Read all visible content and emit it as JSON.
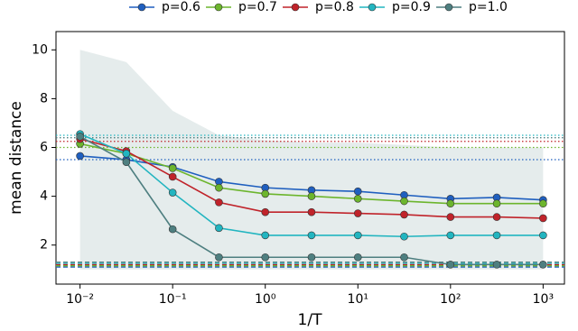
{
  "chart_data": {
    "type": "line",
    "xlabel": "1/T",
    "ylabel": "mean distance",
    "xscale": "log",
    "xlim": [
      0.0055,
      1700
    ],
    "ylim": [
      0.4,
      10.75
    ],
    "xticks": [
      {
        "value": 0.01,
        "label": "10⁻²"
      },
      {
        "value": 0.1,
        "label": "10⁻¹"
      },
      {
        "value": 1,
        "label": "10⁰"
      },
      {
        "value": 10,
        "label": "10¹"
      },
      {
        "value": 100,
        "label": "10²"
      },
      {
        "value": 1000,
        "label": "10³"
      }
    ],
    "yticks": [
      2,
      4,
      6,
      8,
      10
    ],
    "legend": "top",
    "x": [
      0.01,
      0.0316,
      0.1,
      0.316,
      1,
      3.16,
      10,
      31.6,
      100,
      316,
      1000
    ],
    "series": [
      {
        "name": "p=0.6",
        "color": "#1f5fbf",
        "values": [
          5.65,
          5.5,
          5.2,
          4.6,
          4.35,
          4.25,
          4.2,
          4.05,
          3.9,
          3.95,
          3.85
        ],
        "dotted_ref": 5.5,
        "dashed_ref": 1.1
      },
      {
        "name": "p=0.7",
        "color": "#6cb52d",
        "values": [
          6.15,
          5.75,
          5.15,
          4.35,
          4.1,
          4.0,
          3.9,
          3.8,
          3.7,
          3.7,
          3.7
        ],
        "dotted_ref": 6.0,
        "dashed_ref": 1.15
      },
      {
        "name": "p=0.8",
        "color": "#c0232a",
        "values": [
          6.35,
          5.85,
          4.8,
          3.75,
          3.35,
          3.35,
          3.3,
          3.25,
          3.15,
          3.15,
          3.1
        ],
        "dotted_ref": 6.25,
        "dashed_ref": 1.2
      },
      {
        "name": "p=0.9",
        "color": "#22b5c0",
        "values": [
          6.55,
          5.75,
          4.15,
          2.7,
          2.4,
          2.4,
          2.4,
          2.35,
          2.4,
          2.4,
          2.4
        ],
        "dotted_ref": 6.5,
        "dashed_ref": 1.25
      },
      {
        "name": "p=1.0",
        "color": "#4e7f80",
        "values": [
          6.45,
          5.4,
          2.65,
          1.5,
          1.5,
          1.5,
          1.5,
          1.5,
          1.2,
          1.2,
          1.2
        ],
        "dotted_ref": 6.4,
        "dashed_ref": 1.3,
        "lower": [
          1.0,
          1.0,
          1.0,
          1.0,
          1.0,
          1.0,
          1.0,
          1.0,
          1.0,
          1.0,
          1.0
        ],
        "upper": [
          10.0,
          9.5,
          7.5,
          6.5,
          6.3,
          6.2,
          6.2,
          6.1,
          6.0,
          6.0,
          6.0
        ]
      }
    ]
  }
}
